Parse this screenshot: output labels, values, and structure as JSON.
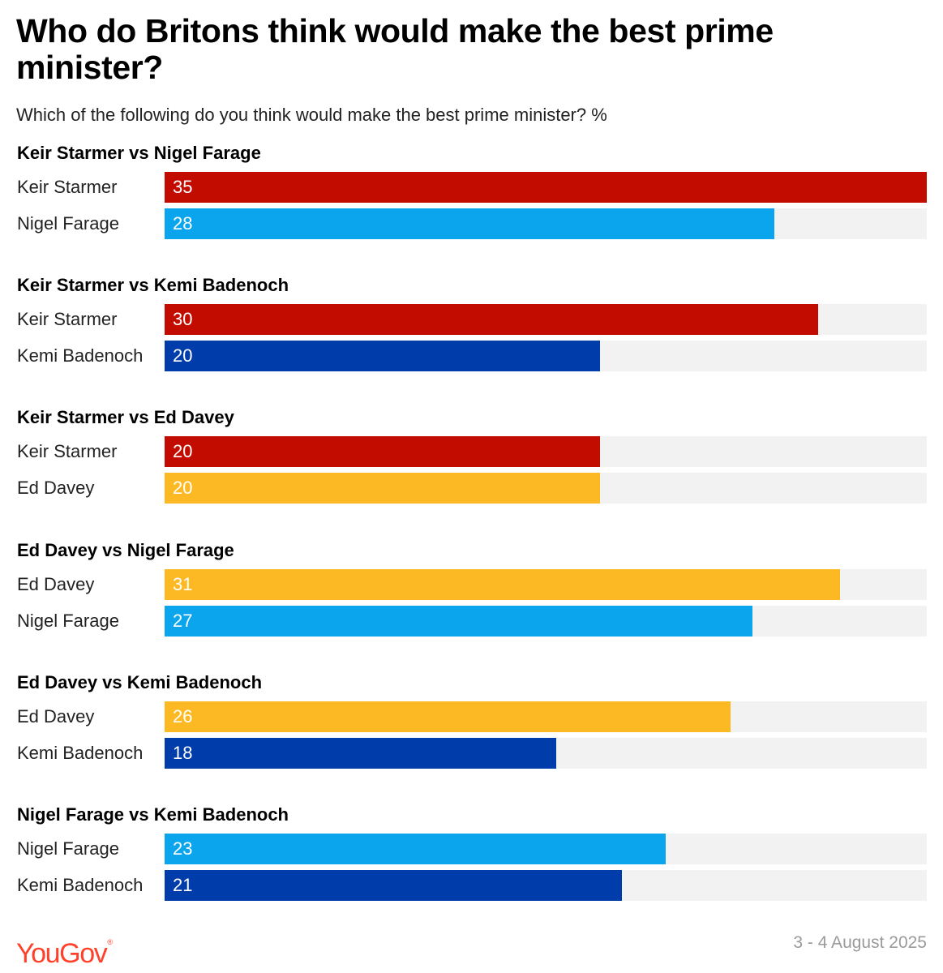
{
  "header": {
    "title": "Who do Britons think would make the best prime minister?",
    "subtitle": "Which of the following do you think would make the best prime minister? %"
  },
  "colors": {
    "Keir Starmer": "#c30c00",
    "Nigel Farage": "#0aa5ec",
    "Kemi Badenoch": "#003caa",
    "Ed Davey": "#fdb924",
    "track": "#f2f2f2"
  },
  "chart_data": {
    "type": "bar",
    "orientation": "horizontal",
    "title": "Who do Britons think would make the best prime minister?",
    "subtitle": "Which of the following do you think would make the best prime minister? %",
    "xlim": [
      0,
      35
    ],
    "groups": [
      {
        "title": "Keir Starmer vs Nigel Farage",
        "bars": [
          {
            "label": "Keir Starmer",
            "value": 35
          },
          {
            "label": "Nigel Farage",
            "value": 28
          }
        ]
      },
      {
        "title": "Keir Starmer vs Kemi Badenoch",
        "bars": [
          {
            "label": "Keir Starmer",
            "value": 30
          },
          {
            "label": "Kemi Badenoch",
            "value": 20
          }
        ]
      },
      {
        "title": "Keir Starmer vs Ed Davey",
        "bars": [
          {
            "label": "Keir Starmer",
            "value": 20
          },
          {
            "label": "Ed Davey",
            "value": 20
          }
        ]
      },
      {
        "title": "Ed Davey vs Nigel Farage",
        "bars": [
          {
            "label": "Ed Davey",
            "value": 31
          },
          {
            "label": "Nigel Farage",
            "value": 27
          }
        ]
      },
      {
        "title": "Ed Davey vs Kemi Badenoch",
        "bars": [
          {
            "label": "Ed Davey",
            "value": 26
          },
          {
            "label": "Kemi Badenoch",
            "value": 18
          }
        ]
      },
      {
        "title": "Nigel Farage vs Kemi Badenoch",
        "bars": [
          {
            "label": "Nigel Farage",
            "value": 23
          },
          {
            "label": "Kemi Badenoch",
            "value": 21
          }
        ]
      }
    ]
  },
  "footer": {
    "logo_text": "YouGov",
    "logo_mark": "®",
    "date": "3 - 4 August 2025"
  }
}
